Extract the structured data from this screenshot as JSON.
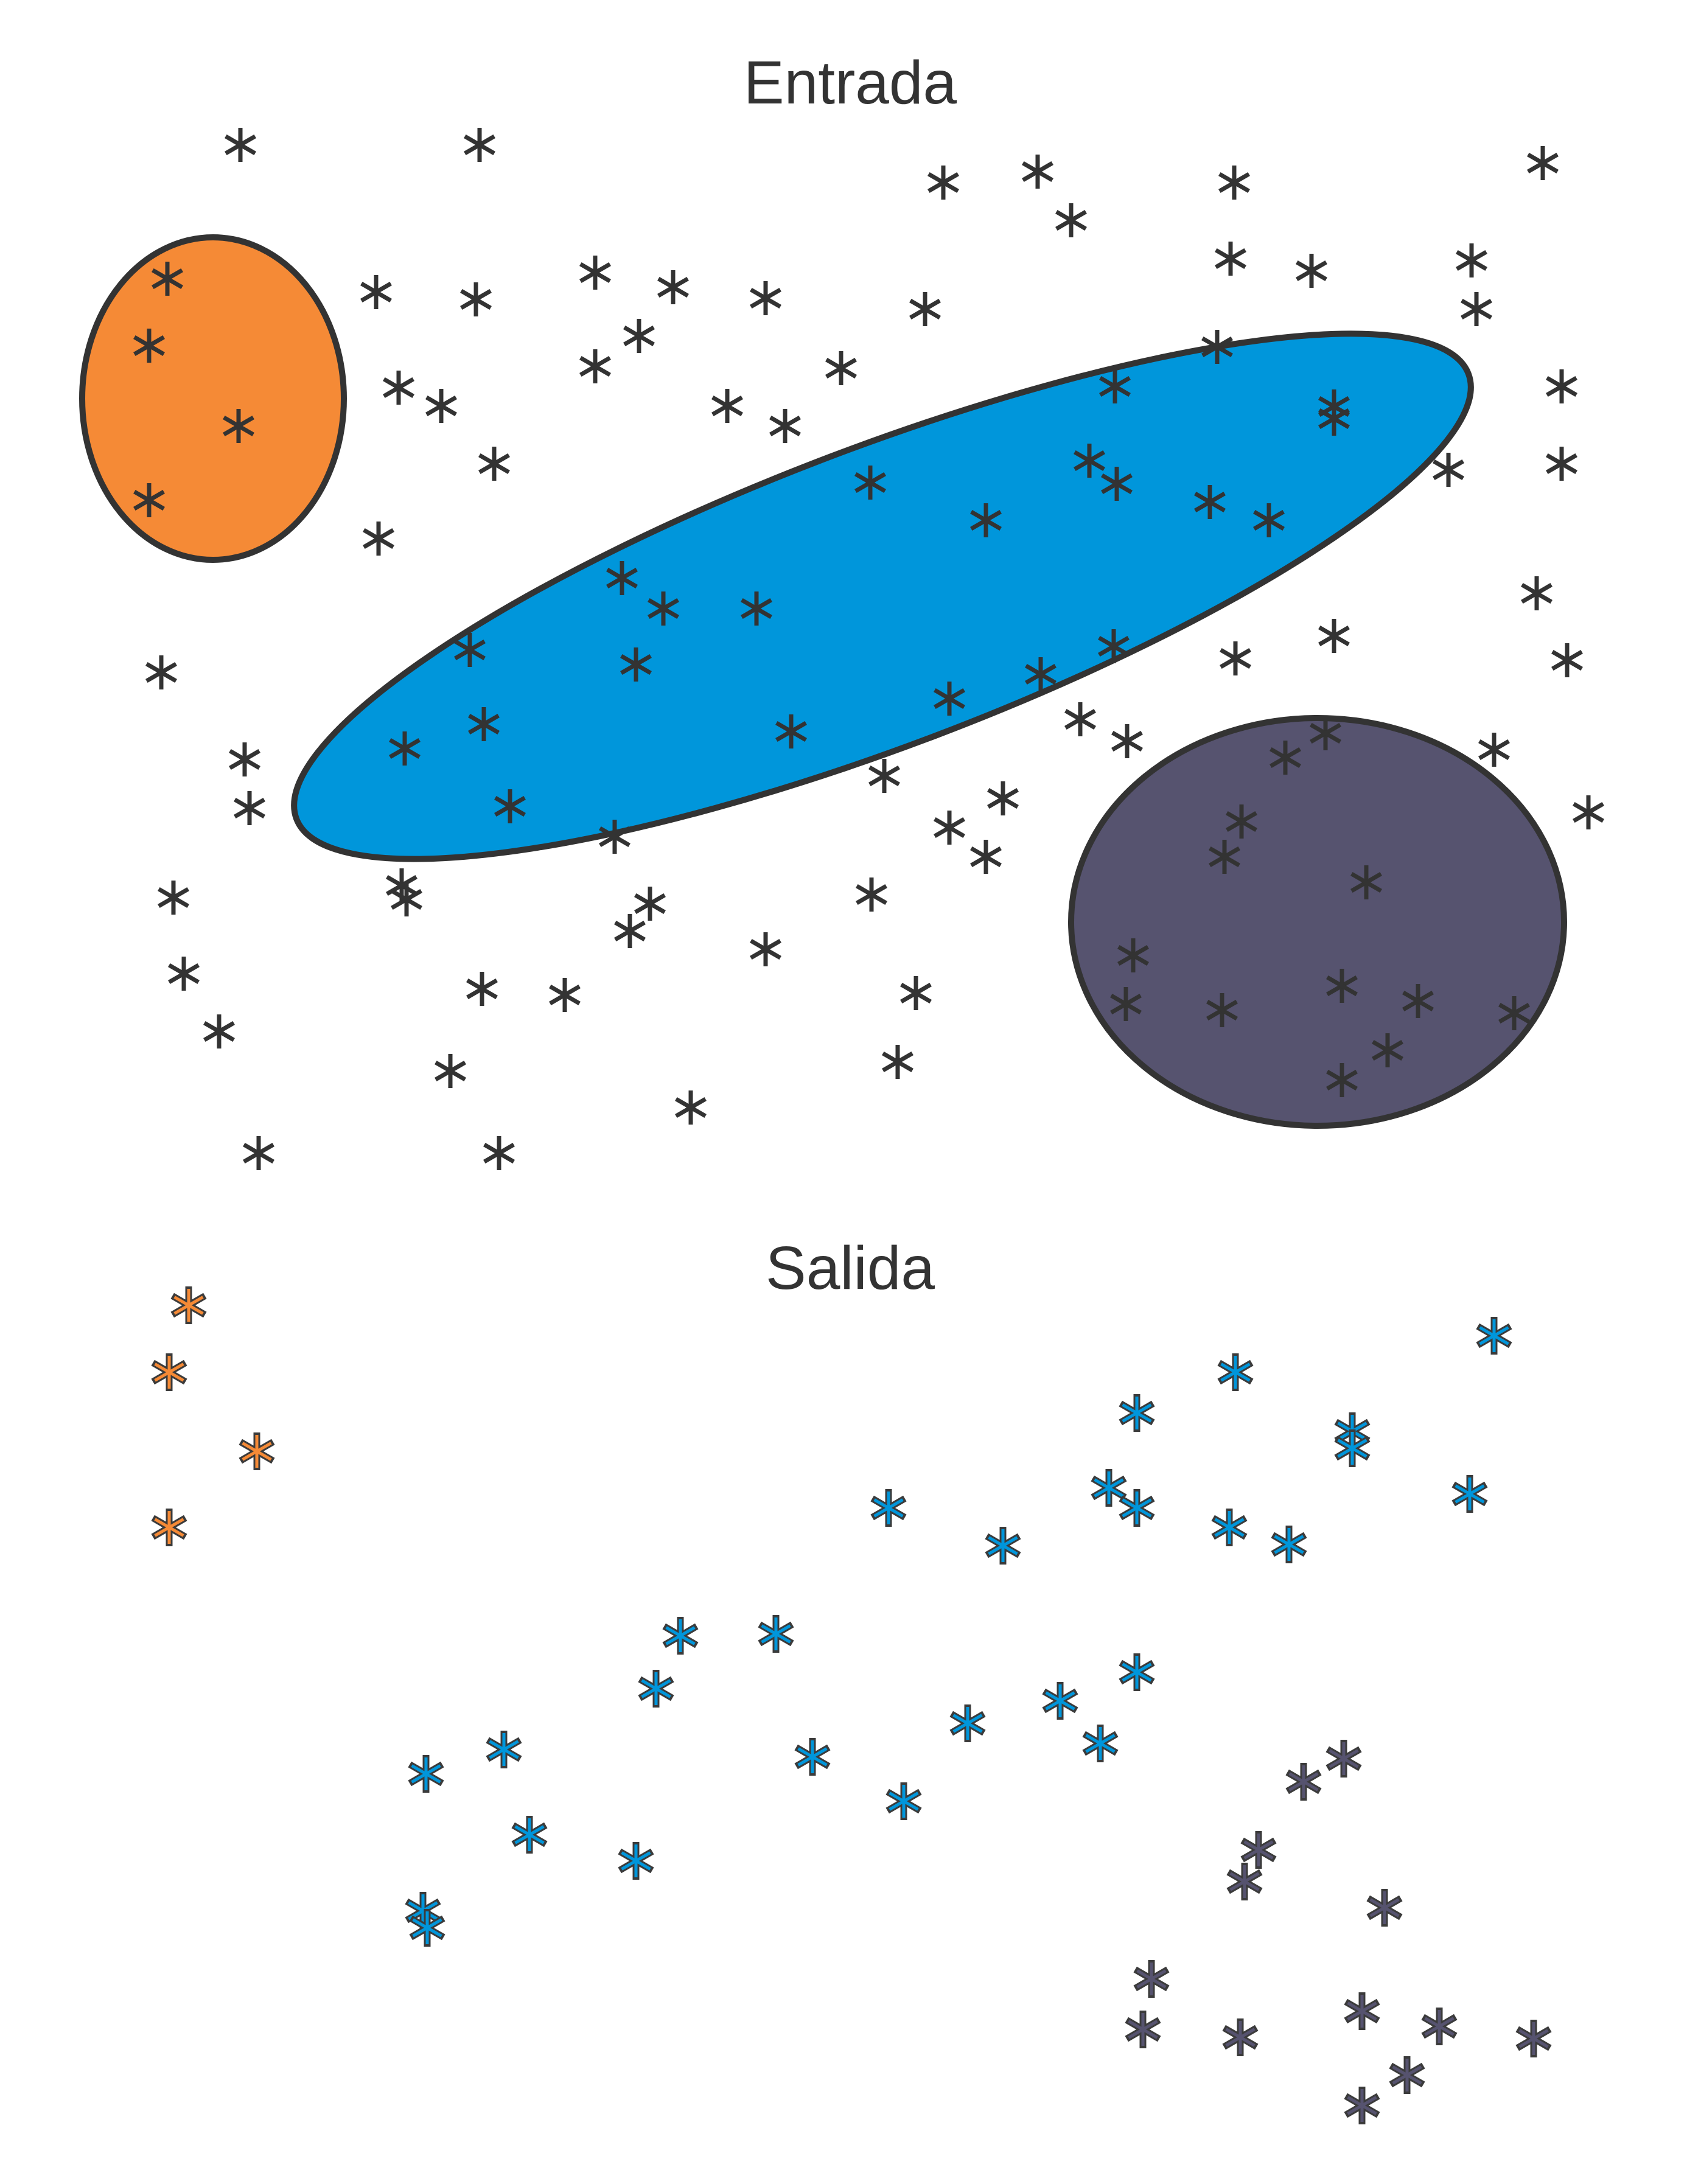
{
  "panels": {
    "input": {
      "title": "Entrada"
    },
    "output": {
      "title": "Salida"
    }
  },
  "colors": {
    "orange": "#F58A36",
    "blue": "#0096DB",
    "slate": "#56536F",
    "ink": "#333333"
  },
  "regions": [
    {
      "id": "orange-cluster",
      "color": "orange"
    },
    {
      "id": "blue-cluster",
      "color": "blue"
    },
    {
      "id": "slate-cluster",
      "color": "slate"
    }
  ]
}
